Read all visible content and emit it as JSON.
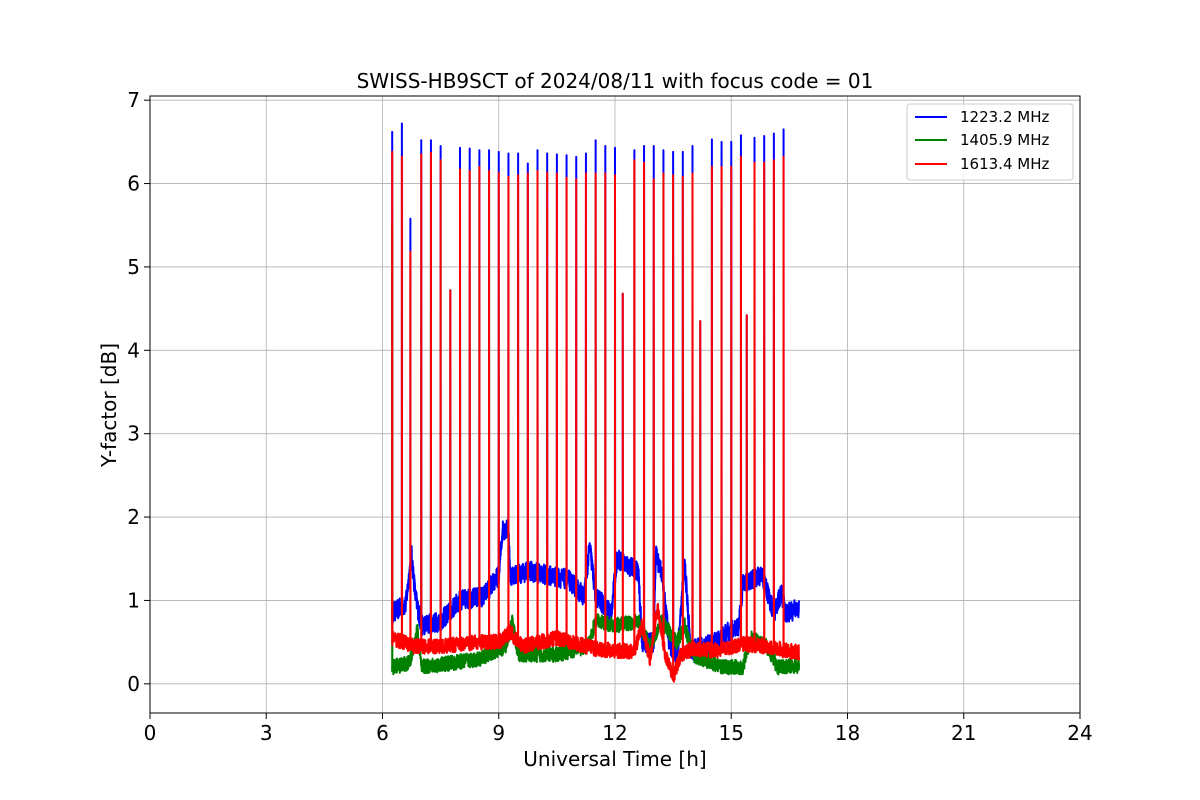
{
  "chart_data": {
    "type": "line",
    "title": "SWISS-HB9SCT of 2024/08/11 with focus code = 01",
    "xlabel": "Universal Time [h]",
    "ylabel": "Y-factor [dB]",
    "xlim": [
      0,
      24
    ],
    "ylim": [
      -0.35,
      7.05
    ],
    "xticks": [
      0,
      3,
      6,
      9,
      12,
      15,
      18,
      21,
      24
    ],
    "yticks": [
      0,
      1,
      2,
      3,
      4,
      5,
      6,
      7
    ],
    "grid": true,
    "legend_position": "top-right",
    "time_range": [
      6.25,
      16.75
    ],
    "series": [
      {
        "name": "1223.2 MHz",
        "color": "#0000ff",
        "baseline": [
          [
            6.25,
            0.85
          ],
          [
            6.6,
            0.95
          ],
          [
            6.75,
            1.55
          ],
          [
            6.85,
            1.05
          ],
          [
            7.0,
            0.7
          ],
          [
            7.5,
            0.75
          ],
          [
            8.0,
            1.0
          ],
          [
            8.6,
            1.05
          ],
          [
            9.0,
            1.3
          ],
          [
            9.1,
            1.85
          ],
          [
            9.25,
            1.85
          ],
          [
            9.3,
            1.3
          ],
          [
            9.8,
            1.35
          ],
          [
            10.3,
            1.3
          ],
          [
            10.8,
            1.25
          ],
          [
            11.2,
            1.05
          ],
          [
            11.35,
            1.65
          ],
          [
            11.5,
            1.05
          ],
          [
            11.9,
            0.85
          ],
          [
            12.05,
            1.5
          ],
          [
            12.6,
            1.35
          ],
          [
            12.7,
            0.5
          ],
          [
            13.0,
            0.5
          ],
          [
            13.05,
            1.55
          ],
          [
            13.2,
            1.35
          ],
          [
            13.4,
            0.5
          ],
          [
            13.6,
            0.3
          ],
          [
            13.8,
            1.45
          ],
          [
            13.95,
            0.4
          ],
          [
            14.6,
            0.5
          ],
          [
            15.0,
            0.65
          ],
          [
            15.2,
            0.7
          ],
          [
            15.3,
            1.2
          ],
          [
            15.8,
            1.3
          ],
          [
            16.1,
            0.85
          ],
          [
            16.3,
            1.1
          ],
          [
            16.4,
            0.85
          ],
          [
            16.75,
            0.9
          ]
        ],
        "noise": 0.12,
        "spikes": [
          [
            6.25,
            6.62
          ],
          [
            6.5,
            6.72
          ],
          [
            6.72,
            5.58
          ],
          [
            7.0,
            6.52
          ],
          [
            7.25,
            6.52
          ],
          [
            7.5,
            6.45
          ],
          [
            7.75,
            4.72
          ],
          [
            8.0,
            6.43
          ],
          [
            8.25,
            6.42
          ],
          [
            8.5,
            6.4
          ],
          [
            8.75,
            6.4
          ],
          [
            9.0,
            6.38
          ],
          [
            9.25,
            6.36
          ],
          [
            9.5,
            6.36
          ],
          [
            9.75,
            6.24
          ],
          [
            10.0,
            6.4
          ],
          [
            10.25,
            6.36
          ],
          [
            10.5,
            6.35
          ],
          [
            10.75,
            6.34
          ],
          [
            11.0,
            6.32
          ],
          [
            11.25,
            6.36
          ],
          [
            11.5,
            6.52
          ],
          [
            11.75,
            6.45
          ],
          [
            12.0,
            6.43
          ],
          [
            12.2,
            4.68
          ],
          [
            12.5,
            6.4
          ],
          [
            12.75,
            6.45
          ],
          [
            13.0,
            6.45
          ],
          [
            13.25,
            6.4
          ],
          [
            13.5,
            6.38
          ],
          [
            13.75,
            6.38
          ],
          [
            14.0,
            6.45
          ],
          [
            14.2,
            4.35
          ],
          [
            14.5,
            6.53
          ],
          [
            14.75,
            6.5
          ],
          [
            15.0,
            6.5
          ],
          [
            15.25,
            6.58
          ],
          [
            15.4,
            4.42
          ],
          [
            15.6,
            6.55
          ],
          [
            15.85,
            6.57
          ],
          [
            16.1,
            6.6
          ],
          [
            16.35,
            6.65
          ]
        ]
      },
      {
        "name": "1405.9 MHz",
        "color": "#008000",
        "baseline": [
          [
            6.25,
            0.2
          ],
          [
            6.7,
            0.25
          ],
          [
            6.9,
            0.65
          ],
          [
            7.0,
            0.2
          ],
          [
            7.8,
            0.25
          ],
          [
            8.5,
            0.3
          ],
          [
            9.2,
            0.45
          ],
          [
            9.35,
            0.75
          ],
          [
            9.5,
            0.35
          ],
          [
            10.5,
            0.35
          ],
          [
            11.3,
            0.45
          ],
          [
            11.5,
            0.75
          ],
          [
            12.0,
            0.7
          ],
          [
            12.6,
            0.75
          ],
          [
            12.9,
            0.45
          ],
          [
            13.2,
            0.75
          ],
          [
            13.6,
            0.5
          ],
          [
            13.8,
            0.7
          ],
          [
            14.0,
            0.35
          ],
          [
            14.8,
            0.2
          ],
          [
            15.3,
            0.2
          ],
          [
            15.5,
            0.55
          ],
          [
            15.9,
            0.45
          ],
          [
            16.2,
            0.2
          ],
          [
            16.75,
            0.22
          ]
        ],
        "noise": 0.09,
        "spikes": [
          [
            6.25,
            5.5
          ]
        ]
      },
      {
        "name": "1613.4 MHz",
        "color": "#ff0000",
        "baseline": [
          [
            6.25,
            0.55
          ],
          [
            6.8,
            0.45
          ],
          [
            7.5,
            0.45
          ],
          [
            8.5,
            0.5
          ],
          [
            9.0,
            0.5
          ],
          [
            9.3,
            0.62
          ],
          [
            9.6,
            0.45
          ],
          [
            10.5,
            0.55
          ],
          [
            11.5,
            0.42
          ],
          [
            12.5,
            0.38
          ],
          [
            12.7,
            0.7
          ],
          [
            12.9,
            0.3
          ],
          [
            13.1,
            0.9
          ],
          [
            13.3,
            0.35
          ],
          [
            13.5,
            0.08
          ],
          [
            13.7,
            0.35
          ],
          [
            14.0,
            0.42
          ],
          [
            14.6,
            0.4
          ],
          [
            15.3,
            0.48
          ],
          [
            15.9,
            0.45
          ],
          [
            16.4,
            0.4
          ],
          [
            16.75,
            0.38
          ]
        ],
        "noise": 0.09,
        "spikes": [
          [
            6.25,
            6.38
          ],
          [
            6.5,
            6.32
          ],
          [
            6.72,
            5.18
          ],
          [
            7.0,
            6.35
          ],
          [
            7.25,
            6.37
          ],
          [
            7.5,
            6.28
          ],
          [
            7.75,
            4.72
          ],
          [
            8.0,
            6.17
          ],
          [
            8.25,
            6.15
          ],
          [
            8.5,
            6.2
          ],
          [
            8.75,
            6.15
          ],
          [
            9.0,
            6.13
          ],
          [
            9.25,
            6.08
          ],
          [
            9.5,
            6.1
          ],
          [
            9.75,
            6.12
          ],
          [
            10.0,
            6.15
          ],
          [
            10.25,
            6.13
          ],
          [
            10.5,
            6.12
          ],
          [
            10.75,
            6.07
          ],
          [
            11.0,
            6.05
          ],
          [
            11.25,
            6.12
          ],
          [
            11.5,
            6.12
          ],
          [
            11.75,
            6.12
          ],
          [
            12.0,
            6.1
          ],
          [
            12.2,
            4.68
          ],
          [
            12.5,
            6.28
          ],
          [
            12.75,
            6.25
          ],
          [
            13.0,
            6.05
          ],
          [
            13.25,
            6.12
          ],
          [
            13.5,
            6.1
          ],
          [
            13.75,
            6.08
          ],
          [
            14.0,
            6.12
          ],
          [
            14.2,
            4.35
          ],
          [
            14.5,
            6.2
          ],
          [
            14.75,
            6.2
          ],
          [
            15.0,
            6.2
          ],
          [
            15.25,
            6.32
          ],
          [
            15.4,
            4.42
          ],
          [
            15.6,
            6.25
          ],
          [
            15.85,
            6.25
          ],
          [
            16.1,
            6.28
          ],
          [
            16.35,
            6.32
          ]
        ]
      }
    ]
  }
}
